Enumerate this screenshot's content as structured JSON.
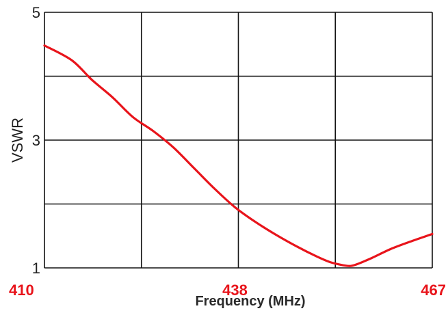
{
  "chart_data": {
    "type": "line",
    "xlabel": "Frequency (MHz)",
    "ylabel": "VSWR",
    "xlim": [
      410,
      467
    ],
    "ylim": [
      1,
      5
    ],
    "y_ticks": [
      "1",
      "3",
      "5"
    ],
    "x_ticks": [
      "410",
      "438",
      "467"
    ],
    "grid": true,
    "colors": {
      "line": "#e8141b",
      "x_tick_text": "#e8141b",
      "grid": "#111111"
    },
    "series": [
      {
        "x": [
          410,
          414,
          417,
          420,
          423,
          426,
          429,
          432,
          435,
          438,
          441,
          444,
          447,
          450,
          452,
          454,
          455,
          456,
          458,
          461,
          464,
          467
        ],
        "y": [
          4.48,
          4.25,
          3.94,
          3.67,
          3.36,
          3.14,
          2.88,
          2.56,
          2.24,
          1.95,
          1.72,
          1.52,
          1.34,
          1.18,
          1.09,
          1.04,
          1.03,
          1.06,
          1.15,
          1.3,
          1.42,
          1.53
        ]
      }
    ]
  }
}
